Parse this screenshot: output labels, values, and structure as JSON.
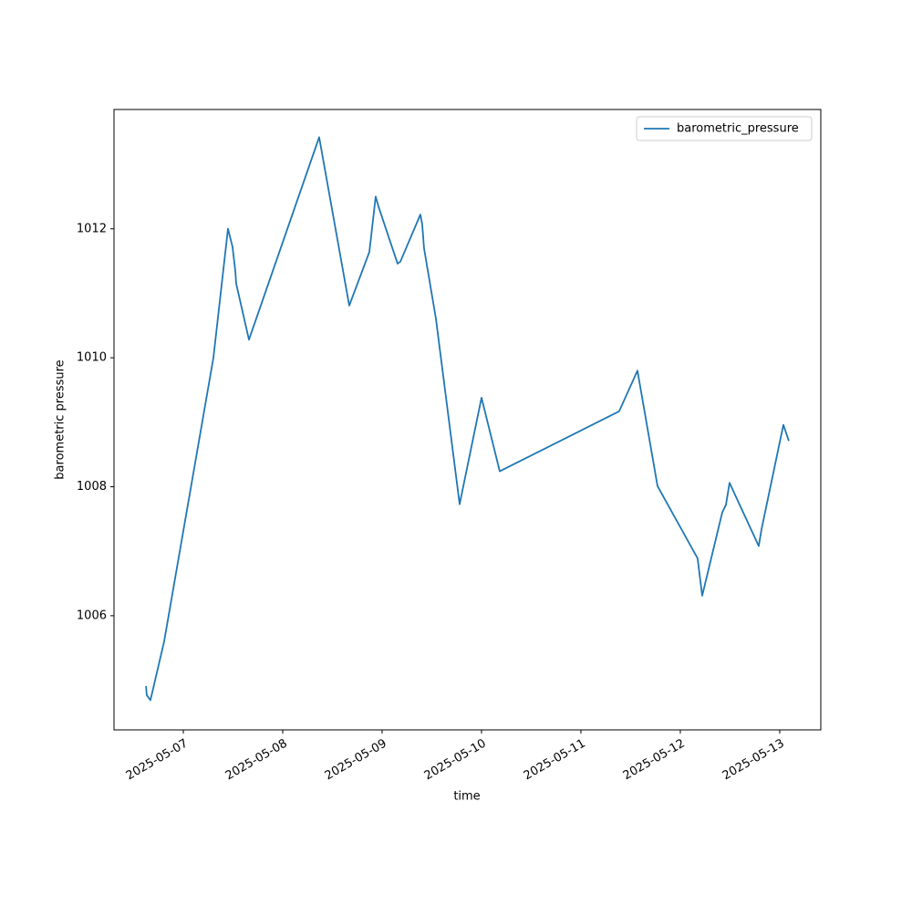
{
  "chart_data": {
    "type": "line",
    "xlabel": "time",
    "ylabel": "barometric pressure",
    "x": [
      "2025-05-06 15:00",
      "2025-05-06 15:10",
      "2025-05-06 16:04",
      "2025-05-06 19:22",
      "2025-05-07 07:16",
      "2025-05-07 10:47",
      "2025-05-07 11:53",
      "2025-05-07 12:33",
      "2025-05-07 12:46",
      "2025-05-07 15:51",
      "2025-05-08 08:48",
      "2025-05-08 16:04",
      "2025-05-08 20:55",
      "2025-05-08 22:27",
      "2025-05-08 23:06",
      "2025-05-09 03:44",
      "2025-05-09 04:24",
      "2025-05-09 09:14",
      "2025-05-09 09:41",
      "2025-05-09 10:07",
      "2025-05-09 12:59",
      "2025-05-09 18:43",
      "2025-05-10 00:00",
      "2025-05-10 04:24",
      "2025-05-11 09:14",
      "2025-05-11 13:39",
      "2025-05-11 18:30",
      "2025-05-12 04:10",
      "2025-05-12 05:17",
      "2025-05-12 10:07",
      "2025-05-12 11:01",
      "2025-05-12 11:53",
      "2025-05-12 18:56",
      "2025-05-12 19:36",
      "2025-05-13 00:53",
      "2025-05-13 02:12"
    ],
    "series": [
      {
        "name": "barometric_pressure",
        "color": "#1f77b4",
        "values": [
          1004.91,
          1004.77,
          1004.69,
          1005.6,
          1010.0,
          1012.0,
          1011.72,
          1011.35,
          1011.15,
          1010.28,
          1013.42,
          1010.81,
          1011.64,
          1012.5,
          1012.35,
          1011.46,
          1011.49,
          1012.22,
          1012.07,
          1011.7,
          1010.61,
          1007.73,
          1009.38,
          1008.24,
          1009.17,
          1009.8,
          1008.01,
          1006.89,
          1006.31,
          1007.6,
          1007.72,
          1008.06,
          1007.08,
          1007.34,
          1008.96,
          1008.71
        ]
      }
    ],
    "xlim": [
      "2025-05-06 07:16",
      "2025-05-13 09:55"
    ],
    "xticks": [
      "2025-05-07",
      "2025-05-08",
      "2025-05-09",
      "2025-05-10",
      "2025-05-11",
      "2025-05-12",
      "2025-05-13"
    ],
    "ylim": [
      1004.23,
      1013.85
    ],
    "yticks": [
      1006,
      1008,
      1010,
      1012
    ],
    "grid": false,
    "legend": "upper right"
  }
}
